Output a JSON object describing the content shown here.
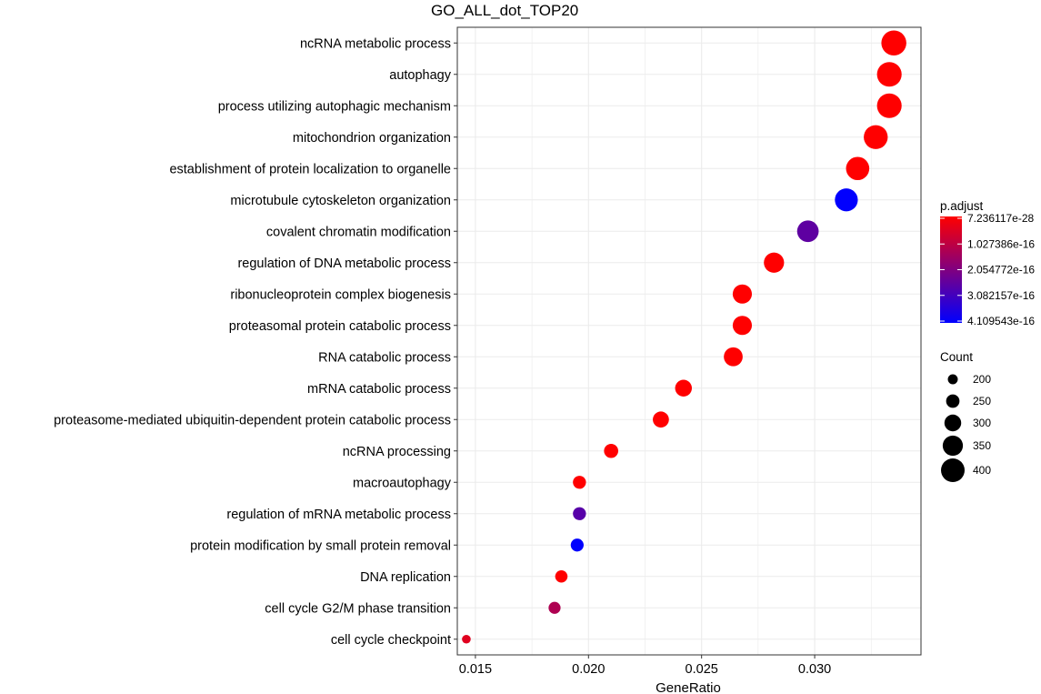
{
  "chart_data": {
    "type": "scatter",
    "title": "GO_ALL_dot_TOP20",
    "xlabel": "GeneRatio",
    "ylabel": "",
    "xlim": [
      0.0142,
      0.0347
    ],
    "xticks": [
      0.015,
      0.02,
      0.025,
      0.03
    ],
    "xtick_labels": [
      "0.015",
      "0.020",
      "0.025",
      "0.030"
    ],
    "grid": true,
    "points": [
      {
        "term": "ncRNA metabolic process",
        "x": 0.0335,
        "count": 420,
        "p_adjust": 1e-50
      },
      {
        "term": "autophagy",
        "x": 0.0333,
        "count": 415,
        "p_adjust": 1e-50
      },
      {
        "term": "process utilizing autophagic mechanism",
        "x": 0.0333,
        "count": 415,
        "p_adjust": 1e-50
      },
      {
        "term": "mitochondrion organization",
        "x": 0.0327,
        "count": 405,
        "p_adjust": 1e-50
      },
      {
        "term": "establishment of protein localization to organelle",
        "x": 0.0319,
        "count": 395,
        "p_adjust": 1e-50
      },
      {
        "term": "microtubule cytoskeleton organization",
        "x": 0.0314,
        "count": 390,
        "p_adjust": 4.1e-16
      },
      {
        "term": "covalent chromatin modification",
        "x": 0.0297,
        "count": 370,
        "p_adjust": 2.6e-16
      },
      {
        "term": "regulation of DNA metabolic process",
        "x": 0.0282,
        "count": 350,
        "p_adjust": 1e-50
      },
      {
        "term": "ribonucleoprotein complex biogenesis",
        "x": 0.0268,
        "count": 335,
        "p_adjust": 1e-50
      },
      {
        "term": "proteasomal protein catabolic process",
        "x": 0.0268,
        "count": 335,
        "p_adjust": 1e-50
      },
      {
        "term": "RNA catabolic process",
        "x": 0.0264,
        "count": 330,
        "p_adjust": 1e-50
      },
      {
        "term": "mRNA catabolic process",
        "x": 0.0242,
        "count": 300,
        "p_adjust": 1e-50
      },
      {
        "term": "proteasome-mediated ubiquitin-dependent protein catabolic process",
        "x": 0.0232,
        "count": 290,
        "p_adjust": 1e-50
      },
      {
        "term": "ncRNA processing",
        "x": 0.021,
        "count": 262,
        "p_adjust": 1e-50
      },
      {
        "term": "macroautophagy",
        "x": 0.0196,
        "count": 245,
        "p_adjust": 1e-50
      },
      {
        "term": "regulation of mRNA metabolic process",
        "x": 0.0196,
        "count": 245,
        "p_adjust": 2.7e-16
      },
      {
        "term": "protein modification by small protein removal",
        "x": 0.0195,
        "count": 243,
        "p_adjust": 4.1e-16
      },
      {
        "term": "DNA replication",
        "x": 0.0188,
        "count": 235,
        "p_adjust": 1e-50
      },
      {
        "term": "cell cycle G2/M phase transition",
        "x": 0.0185,
        "count": 230,
        "p_adjust": 1.3e-16
      },
      {
        "term": "cell cycle checkpoint",
        "x": 0.0146,
        "count": 182,
        "p_adjust": 5e-17
      }
    ],
    "color_legend": {
      "title": "p.adjust",
      "low_color": "#ff0000",
      "high_color": "#0000ff",
      "ticks": [
        {
          "value": 7.236117e-28,
          "label": "7.236117e-28"
        },
        {
          "value": 1.027386e-16,
          "label": "1.027386e-16"
        },
        {
          "value": 2.054772e-16,
          "label": "2.054772e-16"
        },
        {
          "value": 3.082157e-16,
          "label": "3.082157e-16"
        },
        {
          "value": 4.109543e-16,
          "label": "4.109543e-16"
        }
      ]
    },
    "size_legend": {
      "title": "Count",
      "entries": [
        {
          "value": 200,
          "label": "200"
        },
        {
          "value": 250,
          "label": "250"
        },
        {
          "value": 300,
          "label": "300"
        },
        {
          "value": 350,
          "label": "350"
        },
        {
          "value": 400,
          "label": "400"
        }
      ]
    }
  }
}
